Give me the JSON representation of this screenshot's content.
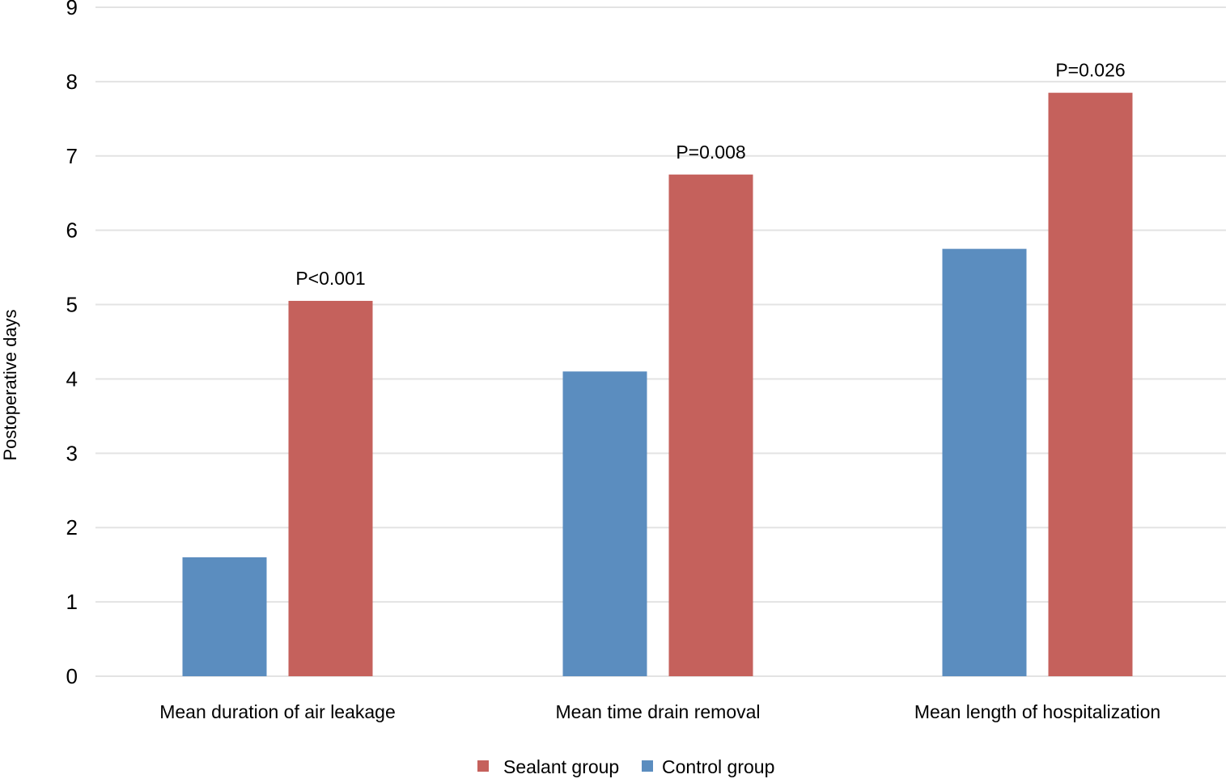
{
  "chart_data": {
    "type": "bar",
    "title": "",
    "xlabel": "",
    "ylabel": "Postoperative days",
    "ylim": [
      0,
      9
    ],
    "yticks": [
      "0",
      "1",
      "2",
      "3",
      "4",
      "5",
      "6",
      "7",
      "8",
      "9"
    ],
    "grid": true,
    "legend_position": "bottom-center",
    "categories": [
      "Mean duration of air leakage",
      "Mean time drain removal",
      "Mean length of hospitalization"
    ],
    "series": [
      {
        "name": "Control group",
        "color": "#5b8dbf",
        "values": [
          1.6,
          4.1,
          5.75
        ]
      },
      {
        "name": "Sealant group",
        "color": "#c5615c",
        "values": [
          5.05,
          6.75,
          7.85
        ]
      }
    ],
    "annotations": [
      "P<0.001",
      "P=0.008",
      "P=0.026"
    ],
    "legend_order": [
      "Sealant group",
      "Control group"
    ]
  }
}
